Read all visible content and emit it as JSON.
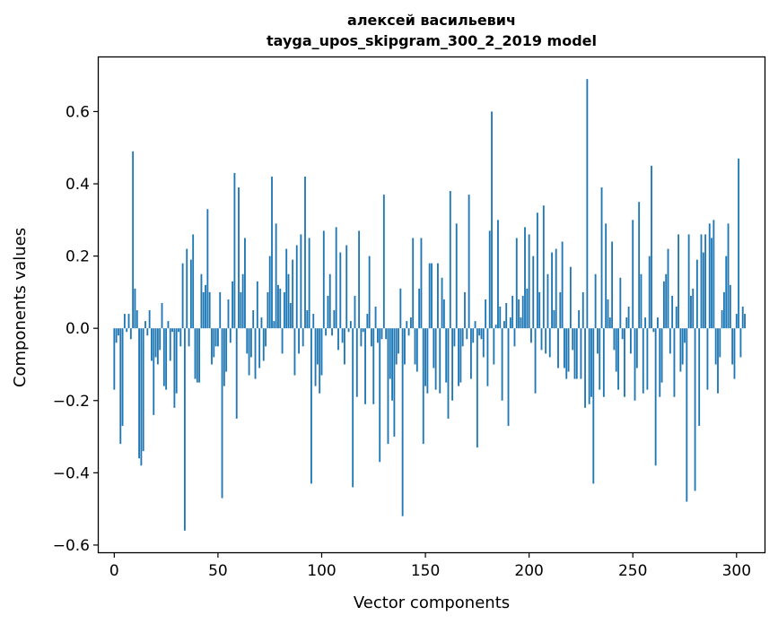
{
  "chart_data": {
    "type": "bar",
    "title": "алексей васильевич",
    "subtitle": "tayga_upos_skipgram_300_2_2019 model",
    "xlabel": "Vector components",
    "ylabel": "Components values",
    "xlim": [
      -7.5,
      313.5
    ],
    "ylim": [
      -0.62,
      0.75
    ],
    "xticks": [
      0,
      50,
      100,
      150,
      200,
      250,
      300
    ],
    "xtick_labels": [
      "0",
      "50",
      "100",
      "150",
      "200",
      "250",
      "300"
    ],
    "yticks": [
      -0.6,
      -0.4,
      -0.2,
      0.0,
      0.2,
      0.4,
      0.6
    ],
    "ytick_labels": [
      "−0.6",
      "−0.4",
      "−0.2",
      "0.0",
      "0.2",
      "0.4",
      "0.6"
    ],
    "bar_color": "#1f77b4",
    "values": [
      -0.17,
      -0.04,
      -0.02,
      -0.32,
      -0.27,
      0.04,
      -0.01,
      0.04,
      -0.03,
      0.49,
      0.11,
      0.05,
      -0.36,
      -0.38,
      -0.34,
      0.02,
      -0.02,
      0.05,
      -0.09,
      -0.24,
      -0.08,
      -0.1,
      -0.06,
      0.07,
      -0.16,
      -0.17,
      0.02,
      -0.09,
      -0.01,
      -0.22,
      -0.18,
      -0.01,
      -0.05,
      0.18,
      -0.56,
      0.22,
      -0.05,
      0.19,
      0.26,
      -0.14,
      -0.15,
      -0.15,
      0.15,
      0.1,
      0.12,
      0.33,
      0.1,
      -0.1,
      -0.08,
      -0.05,
      -0.05,
      0.1,
      -0.47,
      -0.16,
      -0.12,
      0.08,
      -0.04,
      0.13,
      0.43,
      -0.25,
      0.39,
      0.1,
      0.15,
      0.25,
      -0.07,
      -0.13,
      -0.08,
      0.05,
      -0.14,
      0.13,
      -0.11,
      0.03,
      -0.09,
      -0.05,
      0.1,
      0.2,
      0.42,
      0.02,
      0.29,
      0.12,
      0.11,
      -0.07,
      0.1,
      0.22,
      0.15,
      0.07,
      0.19,
      -0.13,
      0.23,
      -0.07,
      0.26,
      -0.05,
      0.42,
      0.05,
      0.25,
      -0.43,
      0.04,
      -0.16,
      -0.1,
      -0.18,
      -0.13,
      0.27,
      -0.02,
      0.09,
      0.15,
      -0.02,
      0.05,
      0.28,
      -0.06,
      0.21,
      -0.04,
      -0.1,
      0.23,
      -0.01,
      0.02,
      -0.44,
      0.09,
      -0.19,
      0.27,
      -0.05,
      -0.01,
      -0.21,
      0.04,
      0.2,
      -0.05,
      -0.21,
      0.06,
      -0.04,
      -0.37,
      -0.03,
      0.37,
      -0.03,
      -0.32,
      -0.14,
      -0.2,
      -0.3,
      -0.1,
      -0.07,
      0.11,
      -0.52,
      -0.1,
      0.02,
      -0.02,
      0.03,
      0.25,
      -0.1,
      -0.12,
      0.11,
      0.25,
      -0.32,
      -0.16,
      -0.18,
      0.18,
      0.18,
      -0.11,
      -0.17,
      0.18,
      -0.18,
      0.14,
      0.08,
      -0.15,
      -0.25,
      0.38,
      -0.2,
      -0.05,
      0.29,
      -0.16,
      -0.15,
      -0.05,
      0.1,
      -0.03,
      0.37,
      -0.14,
      -0.04,
      0.02,
      -0.33,
      -0.02,
      -0.03,
      -0.08,
      0.08,
      -0.16,
      0.27,
      0.6,
      -0.1,
      0.01,
      0.3,
      0.06,
      -0.2,
      0.02,
      0.07,
      -0.27,
      0.03,
      0.09,
      -0.05,
      0.25,
      0.08,
      0.03,
      0.09,
      0.28,
      0.11,
      0.26,
      -0.04,
      0.2,
      -0.18,
      0.32,
      0.1,
      -0.06,
      0.34,
      -0.07,
      0.15,
      -0.08,
      0.21,
      0.05,
      0.22,
      -0.11,
      0.1,
      0.24,
      -0.11,
      -0.14,
      -0.12,
      0.17,
      -0.06,
      -0.14,
      -0.14,
      0.05,
      -0.14,
      0.1,
      -0.22,
      0.69,
      -0.21,
      -0.19,
      -0.43,
      0.15,
      -0.07,
      -0.17,
      0.39,
      -0.19,
      0.29,
      0.08,
      0.03,
      0.24,
      -0.06,
      -0.12,
      -0.17,
      0.14,
      -0.03,
      -0.19,
      0.03,
      0.06,
      -0.07,
      0.3,
      -0.2,
      -0.11,
      0.35,
      0.15,
      -0.18,
      0.03,
      -0.17,
      0.2,
      0.45,
      -0.01,
      -0.38,
      0.03,
      -0.19,
      -0.15,
      0.13,
      0.15,
      0.22,
      -0.07,
      0.09,
      -0.19,
      0.06,
      0.26,
      -0.12,
      -0.1,
      -0.04,
      -0.48,
      0.26,
      0.09,
      0.11,
      -0.45,
      0.19,
      -0.27,
      0.26,
      0.21,
      0.26,
      -0.17,
      0.29,
      0.25,
      0.3,
      -0.1,
      -0.18,
      -0.08,
      0.05,
      0.1,
      0.2,
      0.29,
      0.12,
      -0.1,
      -0.14,
      0.04,
      0.47,
      -0.08,
      0.06,
      0.04
    ]
  }
}
